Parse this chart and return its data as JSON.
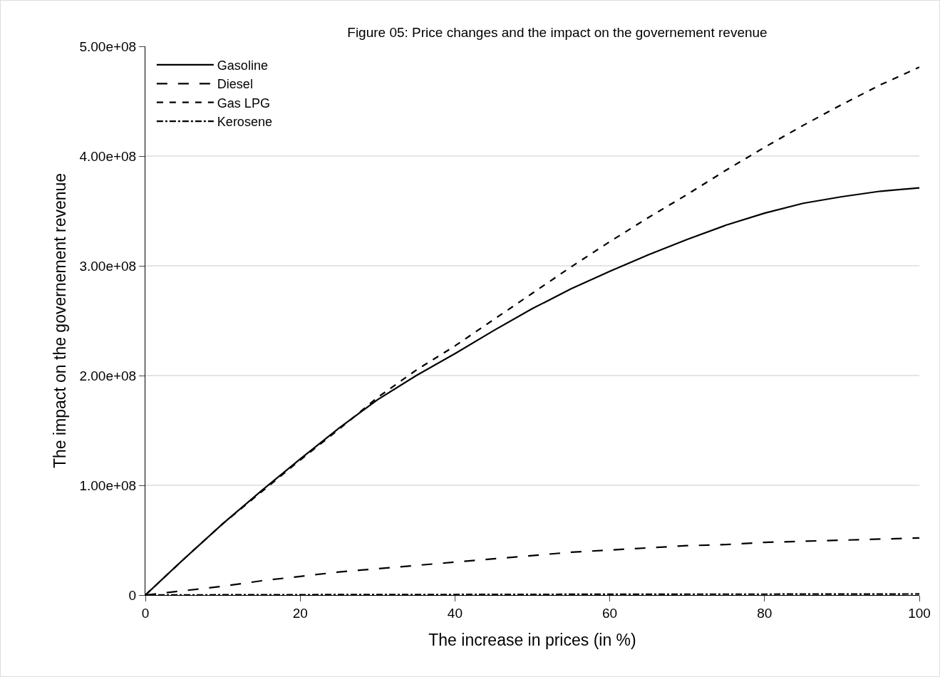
{
  "chart_data": {
    "type": "line",
    "title": "Figure 05: Price changes and the impact on the governement revenue",
    "xlabel": "The increase in prices (in %)",
    "ylabel": "The impact on the governement revenue",
    "x": [
      0,
      5,
      10,
      15,
      20,
      25,
      30,
      35,
      40,
      45,
      50,
      55,
      60,
      65,
      70,
      75,
      80,
      85,
      90,
      95,
      100
    ],
    "series": [
      {
        "name": "Gasoline",
        "color": "#000000",
        "line_style": "solid",
        "values": [
          0,
          33000000,
          65000000,
          95000000,
          124000000,
          152000000,
          178000000,
          200000000,
          220000000,
          241000000,
          261000000,
          279000000,
          295000000,
          310000000,
          324000000,
          337000000,
          348000000,
          357000000,
          363000000,
          368000000,
          371000000
        ]
      },
      {
        "name": "Diesel",
        "color": "#000000",
        "line_style": "dashed",
        "values": [
          0,
          4000000,
          8000000,
          13000000,
          17000000,
          21000000,
          24000000,
          27000000,
          30000000,
          33000000,
          36000000,
          39000000,
          41000000,
          43000000,
          45000000,
          46000000,
          48000000,
          49000000,
          50000000,
          51000000,
          52000000
        ]
      },
      {
        "name": "Gas LPG",
        "color": "#000000",
        "line_style": "dotted",
        "values": [
          0,
          33000000,
          65000000,
          94000000,
          123000000,
          151000000,
          180000000,
          205000000,
          227000000,
          251000000,
          275000000,
          299000000,
          322000000,
          344000000,
          365000000,
          387000000,
          408000000,
          428000000,
          447000000,
          465000000,
          481000000
        ]
      },
      {
        "name": "Kerosene",
        "color": "#000000",
        "line_style": "dashdot",
        "values": [
          0,
          100000,
          200000,
          300000,
          300000,
          400000,
          400000,
          500000,
          500000,
          600000,
          600000,
          700000,
          700000,
          700000,
          800000,
          800000,
          800000,
          900000,
          900000,
          900000,
          1000000
        ]
      }
    ],
    "xlim": [
      0,
      100
    ],
    "xticks": [
      0,
      20,
      40,
      60,
      80,
      100
    ],
    "ylim": [
      0,
      500000000
    ],
    "yticks": [
      0,
      {
        "value": 100000000,
        "label": "1.00e+08"
      },
      {
        "value": 200000000,
        "label": "2.00e+08"
      },
      {
        "value": 300000000,
        "label": "3.00e+08"
      },
      {
        "value": 400000000,
        "label": "4.00e+08"
      },
      {
        "value": 500000000,
        "label": "5.00e+08"
      }
    ],
    "grid": "y",
    "legend": "top left",
    "marker": "none"
  }
}
